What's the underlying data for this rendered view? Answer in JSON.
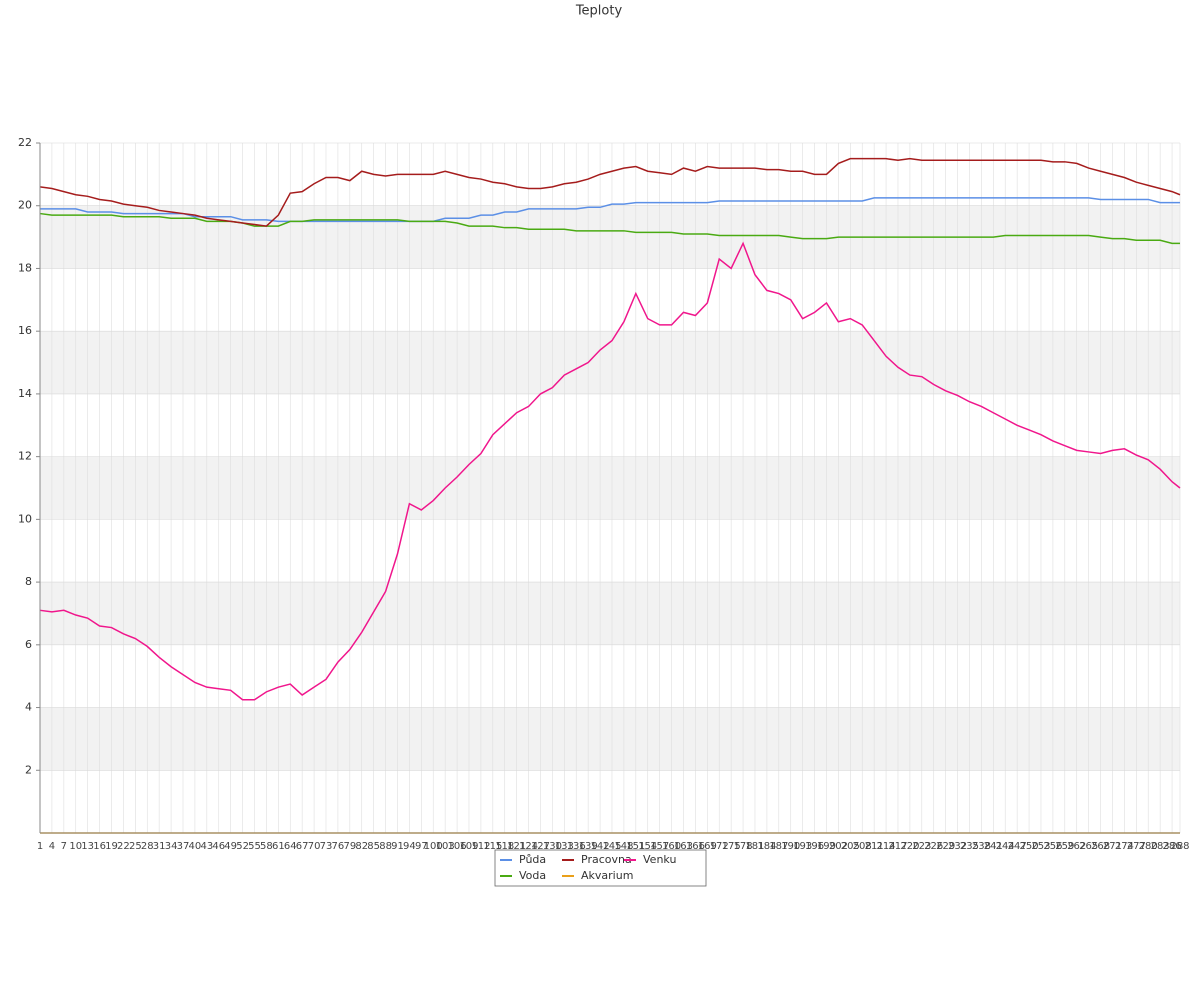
{
  "chart_data": {
    "type": "line",
    "title": "Teploty",
    "x": [
      1,
      4,
      7,
      10,
      13,
      16,
      19,
      22,
      25,
      28,
      31,
      34,
      37,
      40,
      43,
      46,
      49,
      52,
      55,
      58,
      61,
      64,
      67,
      70,
      73,
      76,
      79,
      82,
      85,
      88,
      91,
      94,
      97,
      100,
      103,
      106,
      109,
      112,
      115,
      118,
      121,
      124,
      127,
      130,
      133,
      136,
      139,
      142,
      145,
      148,
      151,
      154,
      157,
      160,
      163,
      166,
      169,
      172,
      175,
      178,
      181,
      184,
      187,
      190,
      193,
      196,
      199,
      202,
      205,
      208,
      211,
      214,
      217,
      220,
      223,
      226,
      229,
      232,
      235,
      238,
      241,
      244,
      247,
      250,
      253,
      256,
      259,
      262,
      265,
      268,
      271,
      274,
      277,
      280,
      283,
      286,
      288
    ],
    "xlim": [
      1,
      288
    ],
    "ylim": [
      0,
      22
    ],
    "yticks": [
      2,
      4,
      6,
      8,
      10,
      12,
      14,
      16,
      18,
      20,
      22
    ],
    "grid": true,
    "series": [
      {
        "name": "Půda",
        "color": "#5b8fe6",
        "values": [
          19.9,
          19.9,
          19.9,
          19.9,
          19.8,
          19.8,
          19.8,
          19.75,
          19.75,
          19.75,
          19.75,
          19.75,
          19.75,
          19.65,
          19.65,
          19.65,
          19.65,
          19.55,
          19.55,
          19.55,
          19.5,
          19.5,
          19.5,
          19.5,
          19.5,
          19.5,
          19.5,
          19.5,
          19.5,
          19.5,
          19.5,
          19.5,
          19.5,
          19.5,
          19.6,
          19.6,
          19.6,
          19.7,
          19.7,
          19.8,
          19.8,
          19.9,
          19.9,
          19.9,
          19.9,
          19.9,
          19.95,
          19.95,
          20.05,
          20.05,
          20.1,
          20.1,
          20.1,
          20.1,
          20.1,
          20.1,
          20.1,
          20.15,
          20.15,
          20.15,
          20.15,
          20.15,
          20.15,
          20.15,
          20.15,
          20.15,
          20.15,
          20.15,
          20.15,
          20.15,
          20.25,
          20.25,
          20.25,
          20.25,
          20.25,
          20.25,
          20.25,
          20.25,
          20.25,
          20.25,
          20.25,
          20.25,
          20.25,
          20.25,
          20.25,
          20.25,
          20.25,
          20.25,
          20.25,
          20.2,
          20.2,
          20.2,
          20.2,
          20.2,
          20.1,
          20.1,
          20.1
        ]
      },
      {
        "name": "Voda",
        "color": "#4aaa12",
        "values": [
          19.75,
          19.7,
          19.7,
          19.7,
          19.7,
          19.7,
          19.7,
          19.65,
          19.65,
          19.65,
          19.65,
          19.6,
          19.6,
          19.6,
          19.5,
          19.5,
          19.5,
          19.45,
          19.35,
          19.35,
          19.35,
          19.5,
          19.5,
          19.55,
          19.55,
          19.55,
          19.55,
          19.55,
          19.55,
          19.55,
          19.55,
          19.5,
          19.5,
          19.5,
          19.5,
          19.45,
          19.35,
          19.35,
          19.35,
          19.3,
          19.3,
          19.25,
          19.25,
          19.25,
          19.25,
          19.2,
          19.2,
          19.2,
          19.2,
          19.2,
          19.15,
          19.15,
          19.15,
          19.15,
          19.1,
          19.1,
          19.1,
          19.05,
          19.05,
          19.05,
          19.05,
          19.05,
          19.05,
          19.0,
          18.95,
          18.95,
          18.95,
          19.0,
          19.0,
          19.0,
          19.0,
          19.0,
          19.0,
          19.0,
          19.0,
          19.0,
          19.0,
          19.0,
          19.0,
          19.0,
          19.0,
          19.05,
          19.05,
          19.05,
          19.05,
          19.05,
          19.05,
          19.05,
          19.05,
          19.0,
          18.95,
          18.95,
          18.9,
          18.9,
          18.9,
          18.8,
          18.8
        ]
      },
      {
        "name": "Pracovna",
        "color": "#a51c1c",
        "values": [
          20.6,
          20.55,
          20.45,
          20.35,
          20.3,
          20.2,
          20.15,
          20.05,
          20.0,
          19.95,
          19.85,
          19.8,
          19.75,
          19.7,
          19.6,
          19.55,
          19.5,
          19.45,
          19.4,
          19.35,
          19.7,
          20.4,
          20.45,
          20.7,
          20.9,
          20.9,
          20.8,
          21.1,
          21.0,
          20.95,
          21.0,
          21.0,
          21.0,
          21.0,
          21.1,
          21.0,
          20.9,
          20.85,
          20.75,
          20.7,
          20.6,
          20.55,
          20.55,
          20.6,
          20.7,
          20.75,
          20.85,
          21.0,
          21.1,
          21.2,
          21.25,
          21.1,
          21.05,
          21.0,
          21.2,
          21.1,
          21.25,
          21.2,
          21.2,
          21.2,
          21.2,
          21.15,
          21.15,
          21.1,
          21.1,
          21.0,
          21.0,
          21.35,
          21.5,
          21.5,
          21.5,
          21.5,
          21.45,
          21.5,
          21.45,
          21.45,
          21.45,
          21.45,
          21.45,
          21.45,
          21.45,
          21.45,
          21.45,
          21.45,
          21.45,
          21.4,
          21.4,
          21.35,
          21.2,
          21.1,
          21.0,
          20.9,
          20.75,
          20.65,
          20.55,
          20.45,
          20.35
        ]
      },
      {
        "name": "Akvarium",
        "color": "#eaa01a",
        "values": [
          0,
          0,
          0,
          0,
          0,
          0,
          0,
          0,
          0,
          0,
          0,
          0,
          0,
          0,
          0,
          0,
          0,
          0,
          0,
          0,
          0,
          0,
          0,
          0,
          0,
          0,
          0,
          0,
          0,
          0,
          0,
          0,
          0,
          0,
          0,
          0,
          0,
          0,
          0,
          0,
          0,
          0,
          0,
          0,
          0,
          0,
          0,
          0,
          0,
          0,
          0,
          0,
          0,
          0,
          0,
          0,
          0,
          0,
          0,
          0,
          0,
          0,
          0,
          0,
          0,
          0,
          0,
          0,
          0,
          0,
          0,
          0,
          0,
          0,
          0,
          0,
          0,
          0,
          0,
          0,
          0,
          0,
          0,
          0,
          0,
          0,
          0,
          0,
          0,
          0,
          0,
          0,
          0,
          0,
          0,
          0,
          0
        ]
      },
      {
        "name": "Venku",
        "color": "#f0168c",
        "values": [
          7.1,
          7.05,
          7.1,
          6.95,
          6.85,
          6.6,
          6.55,
          6.35,
          6.2,
          5.95,
          5.6,
          5.3,
          5.05,
          4.8,
          4.65,
          4.6,
          4.55,
          4.25,
          4.25,
          4.5,
          4.65,
          4.75,
          4.4,
          4.65,
          4.9,
          5.45,
          5.85,
          6.4,
          7.05,
          7.7,
          8.9,
          10.5,
          10.3,
          10.6,
          11.0,
          11.35,
          11.75,
          12.1,
          12.7,
          13.05,
          13.4,
          13.6,
          14.0,
          14.2,
          14.6,
          14.8,
          15.0,
          15.4,
          15.7,
          16.3,
          17.2,
          16.4,
          16.2,
          16.2,
          16.6,
          16.5,
          16.9,
          18.3,
          18.0,
          18.8,
          17.8,
          17.3,
          17.2,
          17.0,
          16.4,
          16.6,
          16.9,
          16.3,
          16.4,
          16.2,
          15.7,
          15.2,
          14.85,
          14.6,
          14.55,
          14.3,
          14.1,
          13.95,
          13.75,
          13.6,
          13.4,
          13.2,
          13.0,
          12.85,
          12.7,
          12.5,
          12.35,
          12.2,
          12.15,
          12.1,
          12.2,
          12.25,
          12.05,
          11.9,
          11.6,
          11.2,
          11.0
        ]
      }
    ]
  }
}
